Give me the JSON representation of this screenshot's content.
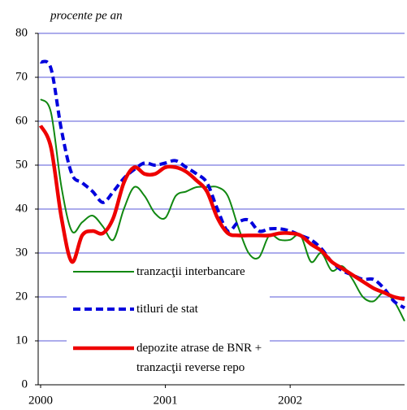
{
  "chart_data": {
    "type": "line",
    "ylabel": "procente pe an",
    "x": [
      2000,
      2000.083,
      2000.167,
      2000.25,
      2000.333,
      2000.417,
      2000.5,
      2000.583,
      2000.667,
      2000.75,
      2000.833,
      2000.917,
      2001,
      2001.083,
      2001.167,
      2001.25,
      2001.333,
      2001.417,
      2001.5,
      2001.583,
      2001.667,
      2001.75,
      2001.833,
      2001.917,
      2002,
      2002.083,
      2002.167,
      2002.25,
      2002.333,
      2002.417,
      2002.5,
      2002.583,
      2002.667,
      2002.75,
      2002.833,
      2002.917
    ],
    "series": [
      {
        "name": "tranzacţii interbancare",
        "color": "#118811",
        "width": 2,
        "dash": false,
        "values": [
          65,
          62,
          45,
          35,
          37,
          38.5,
          36,
          33,
          40,
          45,
          43,
          39,
          38,
          43,
          44,
          45,
          45,
          45,
          43,
          36,
          30,
          29,
          34,
          33,
          33,
          34,
          28,
          30,
          26,
          27,
          24,
          20,
          19,
          21,
          19,
          14.5
        ]
      },
      {
        "name": "titluri de stat",
        "color": "#0000dd",
        "width": 4,
        "dash": true,
        "values": [
          73.5,
          72,
          58,
          48,
          46,
          44,
          41.5,
          44,
          47,
          49,
          50.5,
          50,
          50.5,
          51,
          49.5,
          48,
          46,
          40,
          35,
          37,
          37.5,
          35,
          35.5,
          35.5,
          35,
          34,
          33,
          31,
          28,
          26,
          25,
          24,
          24,
          22,
          19,
          17.5
        ]
      },
      {
        "name": "depozite atrase de BNR + tranzacţii reverse repo",
        "color": "#ee0000",
        "width": 4.5,
        "dash": false,
        "values": [
          59,
          54,
          38,
          28,
          34,
          35,
          34.5,
          38,
          46,
          49.5,
          48,
          48,
          49.5,
          49.5,
          48.5,
          46.5,
          44,
          38,
          34.5,
          34,
          34,
          34,
          34,
          34.5,
          34.5,
          34,
          32,
          30.5,
          28,
          26.5,
          25,
          23.5,
          22,
          21,
          20,
          19.5
        ]
      }
    ],
    "xlim": [
      2000,
      2002.917
    ],
    "xticks": [
      2000,
      2001,
      2002
    ],
    "ylim": [
      0,
      80
    ],
    "yticks": [
      0,
      10,
      20,
      30,
      40,
      50,
      60,
      70,
      80
    ],
    "grid": true,
    "grid_color": "#2222cc"
  }
}
